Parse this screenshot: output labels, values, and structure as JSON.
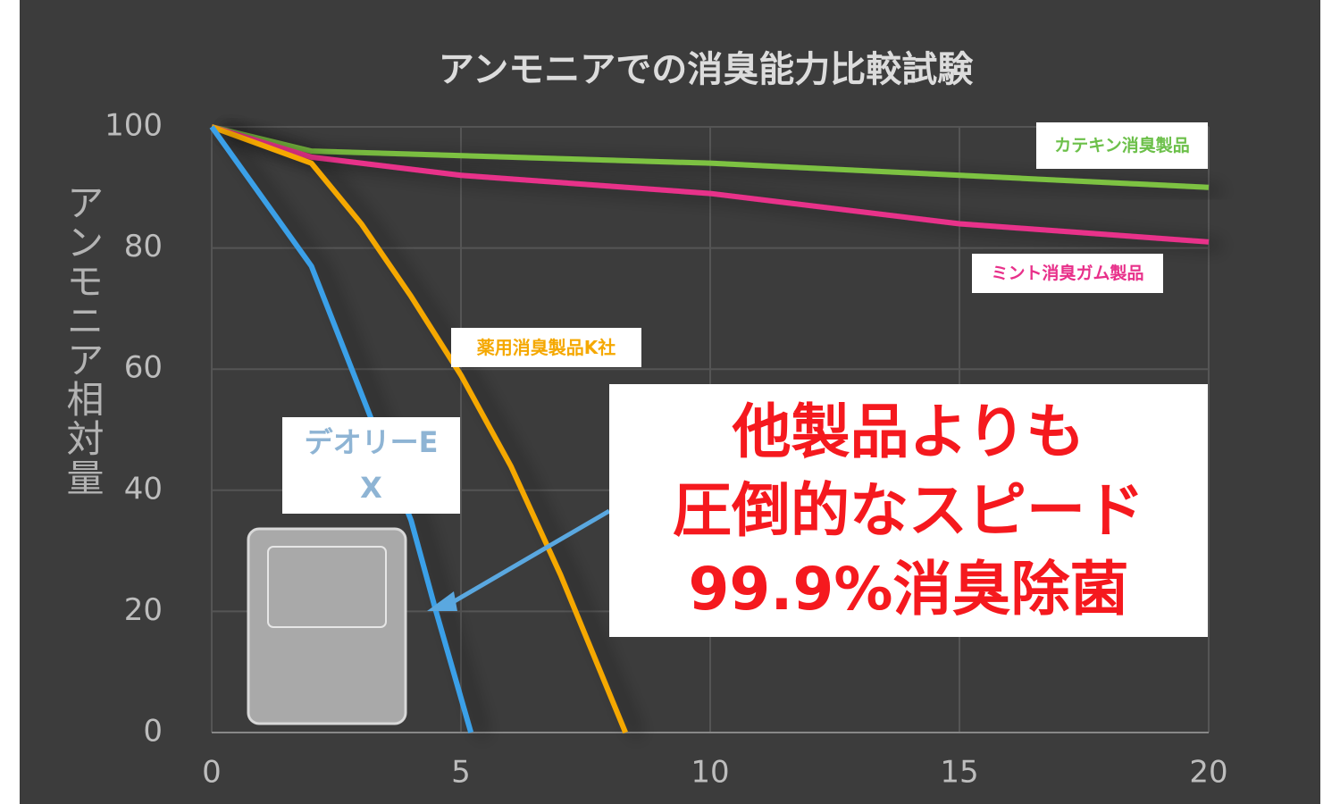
{
  "chart_data": {
    "type": "line",
    "title": "アンモニアでの消臭能力比較試験",
    "y_label": "アンモニア相対量",
    "xlim": [
      0,
      20
    ],
    "xticks": [
      0,
      5,
      10,
      15,
      20
    ],
    "ylim": [
      0,
      100
    ],
    "yticks": [
      0,
      20,
      40,
      60,
      80,
      100
    ],
    "grid": true,
    "series": [
      {
        "name": "カテキン消臭製品",
        "color": "#7dc242",
        "x": [
          0,
          2,
          10,
          20
        ],
        "values": [
          100,
          96,
          94,
          90
        ]
      },
      {
        "name": "ミント消臭ガム製品",
        "color": "#e8308a",
        "x": [
          0,
          2,
          5,
          10,
          15,
          20
        ],
        "values": [
          100,
          95,
          92,
          89,
          84,
          81
        ]
      },
      {
        "name": "薬用消臭製品K社",
        "color": "#f5a800",
        "x": [
          0,
          2,
          3,
          4,
          5,
          6,
          7,
          8.3
        ],
        "values": [
          100,
          94,
          84,
          72,
          59,
          44,
          26,
          0
        ]
      },
      {
        "name": "デオリーEX",
        "color": "#3aa0e8",
        "x": [
          0,
          2,
          3,
          4,
          4.5,
          5.2
        ],
        "values": [
          100,
          77,
          56,
          35,
          20,
          0
        ]
      }
    ],
    "annotation": [
      "他製品よりも",
      "圧倒的なスピード",
      "99.9%消臭除菌"
    ]
  }
}
